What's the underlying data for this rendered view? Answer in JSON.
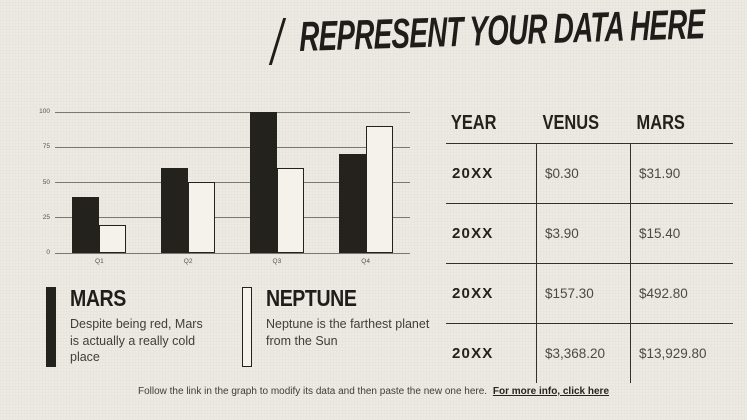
{
  "slide_title": {
    "decoration": "/",
    "text": "REPRESENT YOUR DATA HERE"
  },
  "chart_data": {
    "type": "bar",
    "title": "",
    "xlabel": "",
    "ylabel": "",
    "categories": [
      "Q1",
      "Q2",
      "Q3",
      "Q4"
    ],
    "series": [
      {
        "name": "MARS",
        "values": [
          40,
          60,
          100,
          70
        ],
        "style": "solid",
        "fill": "#23221C"
      },
      {
        "name": "NEPTUNE",
        "values": [
          20,
          50,
          60,
          90
        ],
        "style": "outline",
        "fill": "#F4F2EB",
        "stroke": "#23221C"
      }
    ],
    "ylim": [
      0,
      100
    ],
    "yticks": [
      0,
      25,
      50,
      75,
      100
    ],
    "grid": true,
    "legend_position": "below-left"
  },
  "legend": {
    "items": [
      {
        "name": "MARS",
        "swatch": "solid",
        "description": "Despite being red, Mars is actually a really cold place"
      },
      {
        "name": "NEPTUNE",
        "swatch": "outline",
        "description": "Neptune is the farthest planet from the Sun"
      }
    ]
  },
  "table": {
    "columns": [
      "YEAR",
      "VENUS",
      "MARS"
    ],
    "rows": [
      [
        "20XX",
        "$0.30",
        "$31.90"
      ],
      [
        "20XX",
        "$3.90",
        "$15.40"
      ],
      [
        "20XX",
        "$157.30",
        "$492.80"
      ],
      [
        "20XX",
        "$3,368.20",
        "$13,929.80"
      ]
    ]
  },
  "footer": {
    "text": "Follow the link in the graph to modify its data and then paste the new one here.",
    "link_text": "For more info, click here"
  },
  "colors": {
    "background": "#ECEAE3",
    "ink": "#1E1D19",
    "muted_text": "#403E38",
    "grid_line": "#7B786F",
    "table_line": "#33312B",
    "bar_dark_fill": "#23221C",
    "bar_light_fill": "#F4F2EB"
  }
}
